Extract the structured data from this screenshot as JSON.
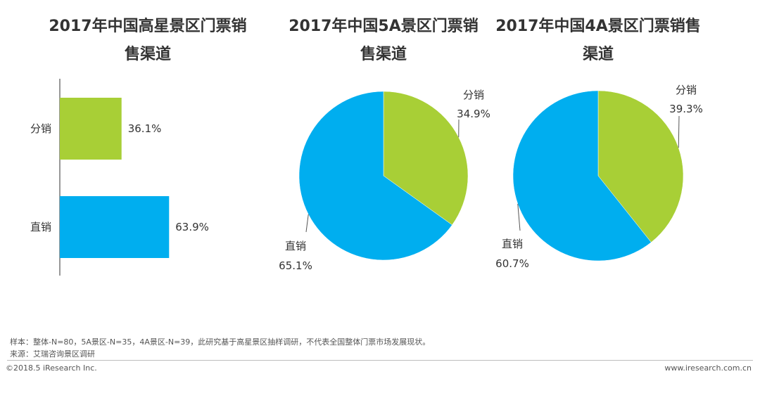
{
  "colors": {
    "green": "#A8CF36",
    "blue": "#00AEEF",
    "text": "#333333"
  },
  "titles": {
    "chart1": {
      "line1": "2017年中国高星景区门票销",
      "line2": "售渠道"
    },
    "chart2": {
      "line1": "2017年中国5A景区门票销",
      "line2": "售渠道"
    },
    "chart3": {
      "line1": "2017年中国4A景区门票销售",
      "line2": "渠道"
    }
  },
  "chart_data": [
    {
      "type": "bar",
      "orientation": "horizontal",
      "title": "2017年中国高星景区门票销售渠道",
      "categories": [
        "分销",
        "直销"
      ],
      "values": [
        36.1,
        63.9
      ],
      "value_labels": [
        "36.1%",
        "63.9%"
      ],
      "colors": [
        "#A8CF36",
        "#00AEEF"
      ],
      "xlim": [
        0,
        100
      ],
      "unit": "%"
    },
    {
      "type": "pie",
      "title": "2017年中国5A景区门票销售渠道",
      "labels": [
        "分销",
        "直销"
      ],
      "values": [
        34.9,
        65.1
      ],
      "value_labels": [
        "34.9%",
        "65.1%"
      ],
      "colors": [
        "#A8CF36",
        "#00AEEF"
      ],
      "unit": "%"
    },
    {
      "type": "pie",
      "title": "2017年中国4A景区门票销售渠道",
      "labels": [
        "分销",
        "直销"
      ],
      "values": [
        39.3,
        60.7
      ],
      "value_labels": [
        "39.3%",
        "60.7%"
      ],
      "colors": [
        "#A8CF36",
        "#00AEEF"
      ],
      "unit": "%"
    }
  ],
  "footer": {
    "sample_note": "样本：整体-N=80，5A景区-N=35，4A景区-N=39，此研究基于高星景区抽样调研，不代表全国整体门票市场发展现状。",
    "source_note": "来源：艾瑞咨询景区调研",
    "copyright": "©2018.5 iResearch Inc.",
    "website": "www.iresearch.com.cn"
  }
}
